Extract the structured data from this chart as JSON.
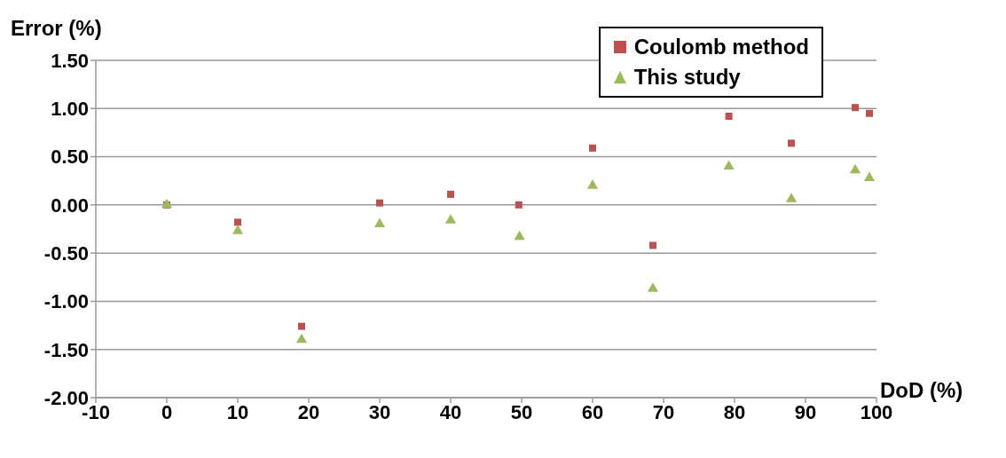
{
  "chart_data": {
    "type": "scatter",
    "xlabel": "DoD (%)",
    "ylabel": "Error (%)",
    "xlim": [
      -10,
      100
    ],
    "xticks": [
      -10,
      0,
      10,
      20,
      30,
      40,
      50,
      60,
      70,
      80,
      90,
      100
    ],
    "ylim": [
      -2,
      1.5
    ],
    "yticks": [
      {
        "value": -2,
        "label": "-2.00"
      },
      {
        "value": -1.5,
        "label": "-1.50"
      },
      {
        "value": -1,
        "label": "-1.00"
      },
      {
        "value": -0.5,
        "label": "-0.50"
      },
      {
        "value": 0,
        "label": "0.00"
      },
      {
        "value": 0.5,
        "label": "0.50"
      },
      {
        "value": 1,
        "label": "1.00"
      },
      {
        "value": 1.5,
        "label": "1.50"
      }
    ],
    "grid": "y",
    "legend": "top right",
    "series": [
      {
        "name": "Coulomb method",
        "color": "#c0504d",
        "marker": "square",
        "x": [
          0,
          10,
          19,
          30,
          40,
          49.6,
          60,
          68.5,
          79.2,
          88,
          97,
          99
        ],
        "values": [
          0,
          -0.18,
          -1.26,
          0.02,
          0.11,
          0,
          0.59,
          -0.42,
          0.92,
          0.64,
          1.01,
          0.95
        ]
      },
      {
        "name": "This study",
        "color": "#9bbb59",
        "marker": "triangle",
        "x": [
          0,
          10,
          19,
          30,
          40,
          49.7,
          60,
          68.5,
          79.2,
          88,
          97,
          99
        ],
        "values": [
          0,
          -0.27,
          -1.4,
          -0.2,
          -0.16,
          -0.33,
          0.2,
          -0.87,
          0.4,
          0.06,
          0.36,
          0.28
        ]
      }
    ]
  }
}
